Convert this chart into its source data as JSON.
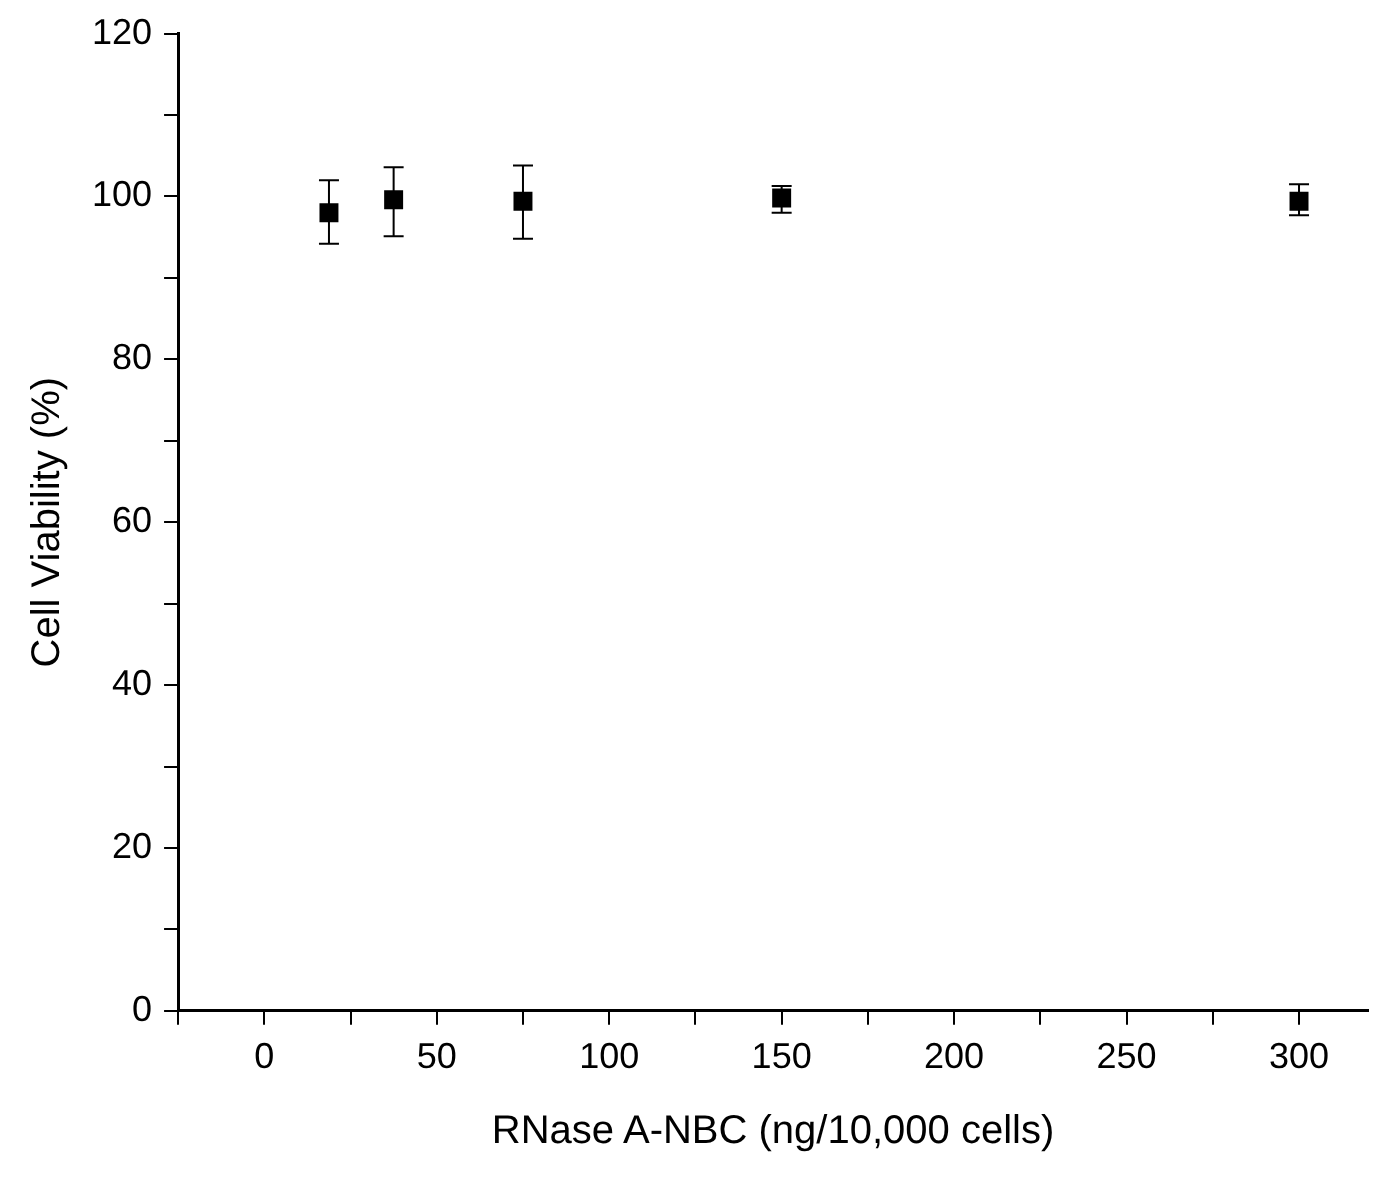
{
  "chart_data": {
    "type": "scatter",
    "xlabel": "RNase A-NBC (ng/10,000 cells)",
    "ylabel": "Cell Viability (%)",
    "x": [
      18.75,
      37.5,
      75,
      150,
      300
    ],
    "series": [
      {
        "color": "#000000",
        "values": [
          98.0,
          99.6,
          99.4,
          99.8,
          99.4
        ],
        "errors": [
          [
            94.2,
            102.0
          ],
          [
            95.1,
            103.6
          ],
          [
            94.8,
            103.8
          ],
          [
            98.0,
            101.3
          ],
          [
            97.7,
            101.5
          ]
        ]
      }
    ],
    "xlim": [
      -25,
      320
    ],
    "ylim": [
      0,
      120
    ],
    "xticks": [
      {
        "value": -25,
        "label": null
      },
      0,
      {
        "value": 25,
        "label": null
      },
      50,
      {
        "value": 75,
        "label": null
      },
      100,
      {
        "value": 125,
        "label": null
      },
      150,
      {
        "value": 175,
        "label": null
      },
      200,
      {
        "value": 225,
        "label": null
      },
      250,
      {
        "value": 275,
        "label": null
      },
      300
    ],
    "yticks": [
      0,
      {
        "value": 10,
        "label": null
      },
      20,
      {
        "value": 30,
        "label": null
      },
      40,
      {
        "value": 50,
        "label": null
      },
      60,
      {
        "value": 70,
        "label": null
      },
      80,
      {
        "value": 90,
        "label": null
      },
      100,
      {
        "value": 110,
        "label": null
      },
      120
    ],
    "grid": false,
    "legend": false,
    "marker": "square"
  }
}
